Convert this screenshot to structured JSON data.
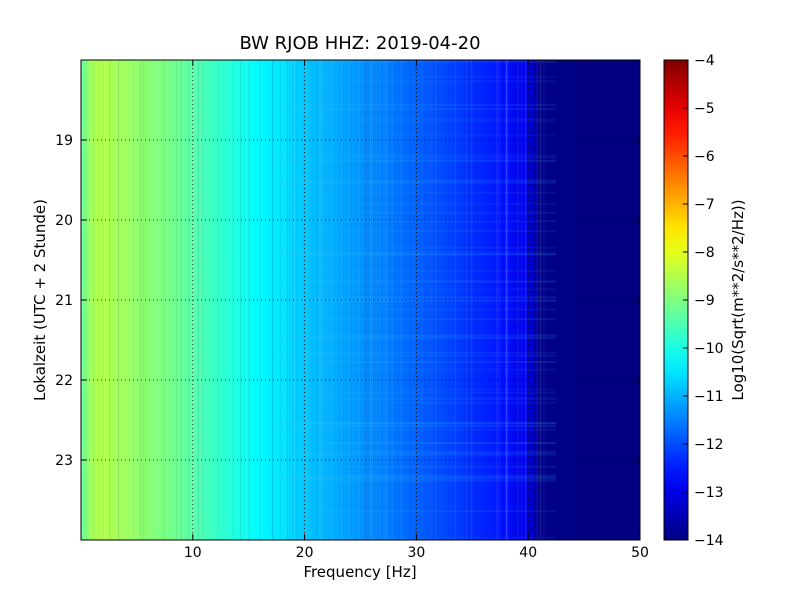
{
  "chart_data": {
    "type": "heatmap",
    "title": "BW RJOB HHZ: 2019-04-20",
    "xlabel": "Frequency [Hz]",
    "ylabel": "Lokalzeit (UTC + 2 Stunde)",
    "colorbar_label": "Log10(Sqrt(m**2/s**2/Hz))",
    "xlim": [
      0,
      50
    ],
    "ylim": [
      24,
      18
    ],
    "clim": [
      -14,
      -4
    ],
    "colormap": "jet",
    "grid": true,
    "x_ticks": [
      10,
      20,
      30,
      40,
      50
    ],
    "x_tick_labels": [
      "10",
      "20",
      "30",
      "40",
      "50"
    ],
    "y_ticks": [
      19,
      20,
      21,
      22,
      23
    ],
    "y_tick_labels": [
      "19",
      "20",
      "21",
      "22",
      "23"
    ],
    "colorbar_ticks": [
      -4,
      -5,
      -6,
      -7,
      -8,
      -9,
      -10,
      -11,
      -12,
      -13,
      -14
    ],
    "colorbar_tick_labels": [
      "−4",
      "−5",
      "−6",
      "−7",
      "−8",
      "−9",
      "−10",
      "−11",
      "−12",
      "−13",
      "−14"
    ],
    "spectrum_profile": {
      "frequency": [
        0,
        1,
        2,
        3,
        5,
        8,
        10,
        12,
        14,
        16,
        18,
        20,
        22,
        25,
        28,
        30,
        32,
        35,
        38,
        40,
        41,
        45,
        50
      ],
      "value": [
        -9.3,
        -8.6,
        -8.5,
        -8.6,
        -8.8,
        -9.1,
        -9.4,
        -9.7,
        -10.0,
        -10.3,
        -10.5,
        -10.8,
        -11.0,
        -11.3,
        -11.6,
        -11.8,
        -12.0,
        -12.3,
        -12.6,
        -13.0,
        -13.9,
        -14.0,
        -14.0
      ]
    }
  }
}
